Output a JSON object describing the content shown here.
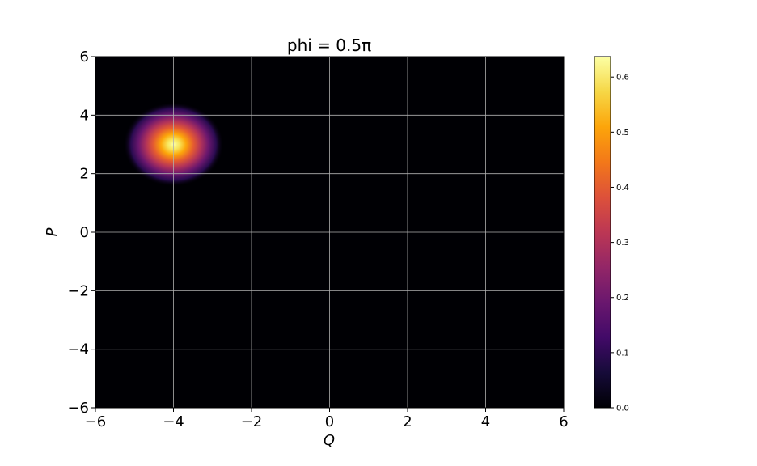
{
  "chart_data": {
    "type": "heatmap",
    "title": "phi = 0.5π",
    "xlabel": "Q",
    "ylabel": "P",
    "xlim": [
      -6,
      6
    ],
    "ylim": [
      -6,
      6
    ],
    "x_ticks": [
      -6,
      -4,
      -2,
      0,
      2,
      4,
      6
    ],
    "y_ticks": [
      -6,
      -4,
      -2,
      0,
      2,
      4,
      6
    ],
    "x_tick_labels": [
      "−6",
      "−4",
      "−2",
      "0",
      "2",
      "4",
      "6"
    ],
    "y_tick_labels": [
      "−6",
      "−4",
      "−2",
      "0",
      "2",
      "4",
      "6"
    ],
    "grid": true,
    "colormap": "inferno",
    "peak": {
      "q": -4,
      "p": 3,
      "value": 0.637
    },
    "colorbar": {
      "min": 0.0,
      "max": 0.637,
      "ticks": [
        0.0,
        0.1,
        0.2,
        0.3,
        0.4,
        0.5,
        0.6
      ],
      "tick_labels": [
        "0.0",
        "0.1",
        "0.2",
        "0.3",
        "0.4",
        "0.5",
        "0.6"
      ]
    }
  }
}
